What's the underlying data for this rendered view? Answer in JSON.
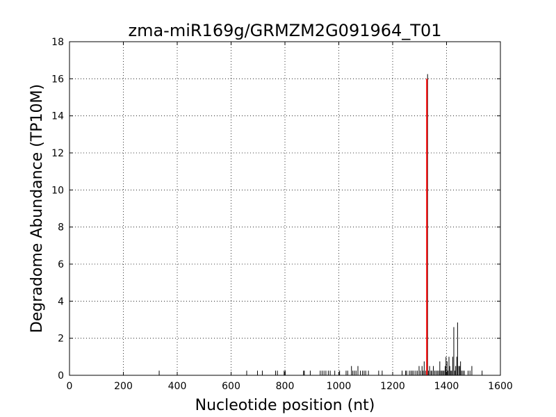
{
  "chart_data": {
    "type": "bar",
    "title": "zma-miR169g/GRMZM2G091964_T01",
    "xlabel": "Nucleotide position (nt)",
    "ylabel": "Degradome Abundance (TP10M)",
    "xlim": [
      0,
      1600
    ],
    "ylim": [
      0,
      18
    ],
    "xticks": [
      0,
      200,
      400,
      600,
      800,
      1000,
      1200,
      1400,
      1600
    ],
    "yticks": [
      0,
      2,
      4,
      6,
      8,
      10,
      12,
      14,
      16,
      18
    ],
    "grid": true,
    "colors": {
      "series": "#000000",
      "target": "#ff0000"
    },
    "series": [
      {
        "values": [
          [
            333,
            0.25
          ],
          [
            658,
            0.25
          ],
          [
            698,
            0.25
          ],
          [
            716,
            0.25
          ],
          [
            765,
            0.25
          ],
          [
            772,
            0.25
          ],
          [
            797,
            0.25
          ],
          [
            801,
            0.25
          ],
          [
            869,
            0.25
          ],
          [
            872,
            0.25
          ],
          [
            894,
            0.25
          ],
          [
            931,
            0.25
          ],
          [
            938,
            0.25
          ],
          [
            945,
            0.25
          ],
          [
            952,
            0.25
          ],
          [
            961,
            0.25
          ],
          [
            968,
            0.25
          ],
          [
            985,
            0.25
          ],
          [
            1003,
            0.25
          ],
          [
            1027,
            0.25
          ],
          [
            1033,
            0.25
          ],
          [
            1047,
            0.5
          ],
          [
            1052,
            0.25
          ],
          [
            1058,
            0.25
          ],
          [
            1064,
            0.25
          ],
          [
            1071,
            0.5
          ],
          [
            1080,
            0.25
          ],
          [
            1088,
            0.25
          ],
          [
            1094,
            0.25
          ],
          [
            1100,
            0.25
          ],
          [
            1110,
            0.25
          ],
          [
            1148,
            0.25
          ],
          [
            1161,
            0.25
          ],
          [
            1235,
            0.25
          ],
          [
            1248,
            0.25
          ],
          [
            1252,
            0.25
          ],
          [
            1262,
            0.25
          ],
          [
            1268,
            0.25
          ],
          [
            1273,
            0.25
          ],
          [
            1279,
            0.25
          ],
          [
            1286,
            0.25
          ],
          [
            1292,
            0.25
          ],
          [
            1298,
            0.5
          ],
          [
            1303,
            0.25
          ],
          [
            1309,
            0.5
          ],
          [
            1313,
            0.25
          ],
          [
            1317,
            0.75
          ],
          [
            1322,
            0.25
          ],
          [
            1329,
            0.25
          ],
          [
            1333,
            0.25
          ],
          [
            1337,
            0.5
          ],
          [
            1342,
            0.25
          ],
          [
            1346,
            0.25
          ],
          [
            1351,
            0.5
          ],
          [
            1356,
            0.25
          ],
          [
            1361,
            0.25
          ],
          [
            1366,
            0.25
          ],
          [
            1371,
            0.25
          ],
          [
            1375,
            0.75
          ],
          [
            1379,
            0.25
          ],
          [
            1383,
            0.25
          ],
          [
            1387,
            0.25
          ],
          [
            1391,
            0.25
          ],
          [
            1395,
            0.5
          ],
          [
            1398,
            1.0
          ],
          [
            1402,
            0.75
          ],
          [
            1405,
            0.25
          ],
          [
            1409,
            1.0
          ],
          [
            1412,
            0.5
          ],
          [
            1416,
            0.25
          ],
          [
            1419,
            0.25
          ],
          [
            1423,
            1.0
          ],
          [
            1427,
            2.6
          ],
          [
            1431,
            0.25
          ],
          [
            1434,
            0.5
          ],
          [
            1438,
            1.0
          ],
          [
            1441,
            2.85
          ],
          [
            1445,
            0.5
          ],
          [
            1449,
            0.5
          ],
          [
            1452,
            0.75
          ],
          [
            1456,
            0.25
          ],
          [
            1461,
            0.25
          ],
          [
            1466,
            0.25
          ],
          [
            1480,
            0.25
          ],
          [
            1487,
            0.25
          ],
          [
            1494,
            0.5
          ],
          [
            1532,
            0.25
          ]
        ]
      },
      {
        "values": [
          [
            1327,
            16.0
          ]
        ]
      }
    ]
  }
}
